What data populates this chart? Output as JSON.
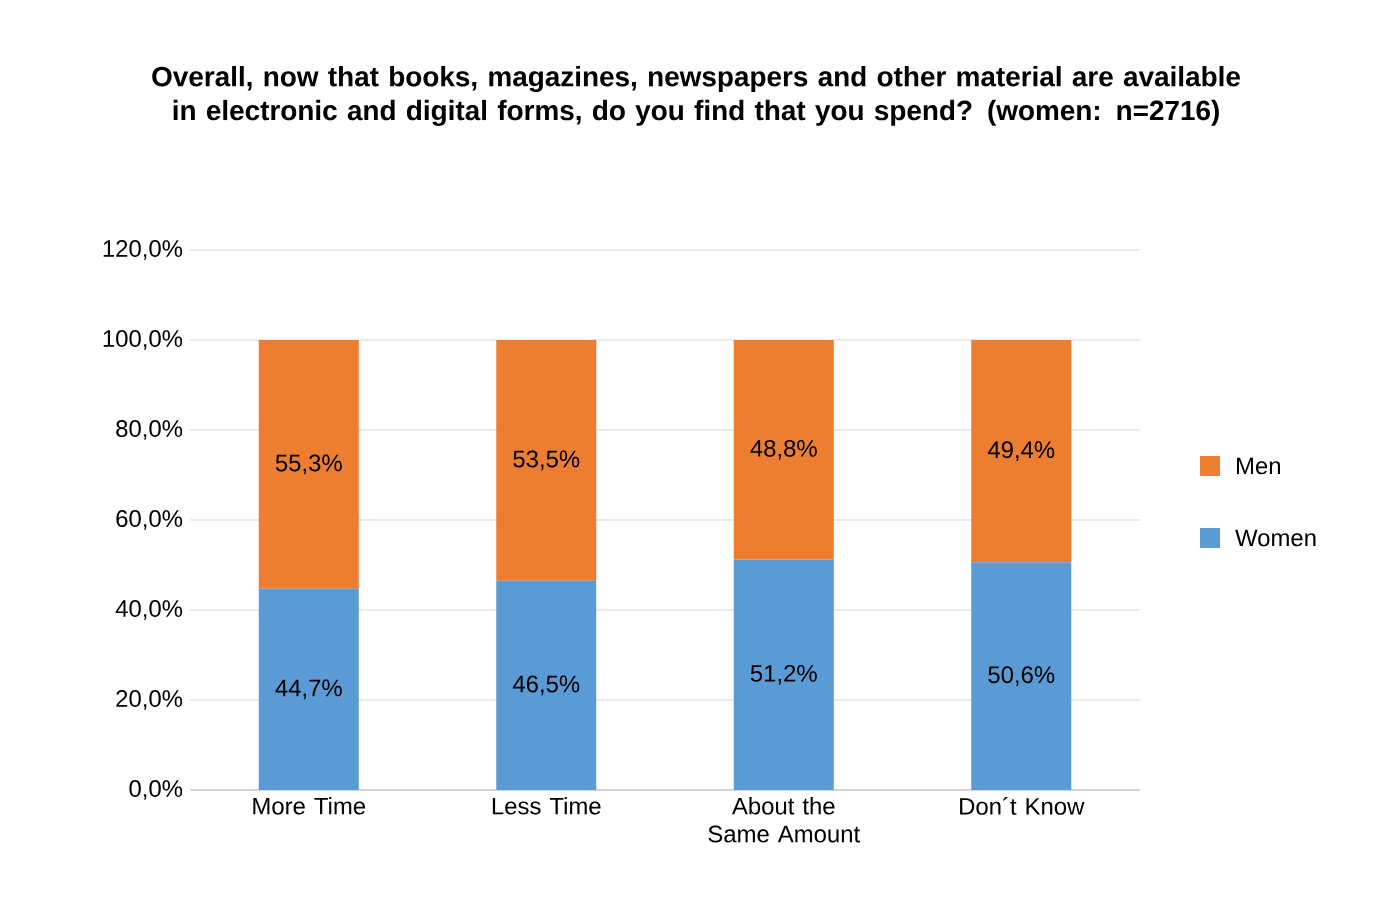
{
  "chart_data": {
    "type": "bar",
    "stacked": true,
    "title": "Overall, now that books, magazines, newspapers and other material are available in electronic and digital forms, do you find that you spend? (women: n=2716)",
    "categories": [
      "More Time",
      "Less Time",
      "About the Same Amount",
      "Don´t Know"
    ],
    "series": [
      {
        "name": "Women",
        "color": "#5b9bd5",
        "values": [
          44.7,
          46.5,
          51.2,
          50.6
        ],
        "value_labels": [
          "44,7%",
          "46,5%",
          "51,2%",
          "50,6%"
        ]
      },
      {
        "name": "Men",
        "color": "#ed7d31",
        "values": [
          55.3,
          53.5,
          48.8,
          49.4
        ],
        "value_labels": [
          "55,3%",
          "53,5%",
          "48,8%",
          "49,4%"
        ]
      }
    ],
    "ylim": [
      0,
      120
    ],
    "yticks": [
      {
        "value": 0,
        "label": "0,0%"
      },
      {
        "value": 20,
        "label": "20,0%"
      },
      {
        "value": 40,
        "label": "40,0%"
      },
      {
        "value": 60,
        "label": "60,0%"
      },
      {
        "value": 80,
        "label": "80,0%"
      },
      {
        "value": 100,
        "label": "100,0%"
      },
      {
        "value": 120,
        "label": "120,0%"
      }
    ],
    "grid": "y",
    "legend": "right"
  }
}
